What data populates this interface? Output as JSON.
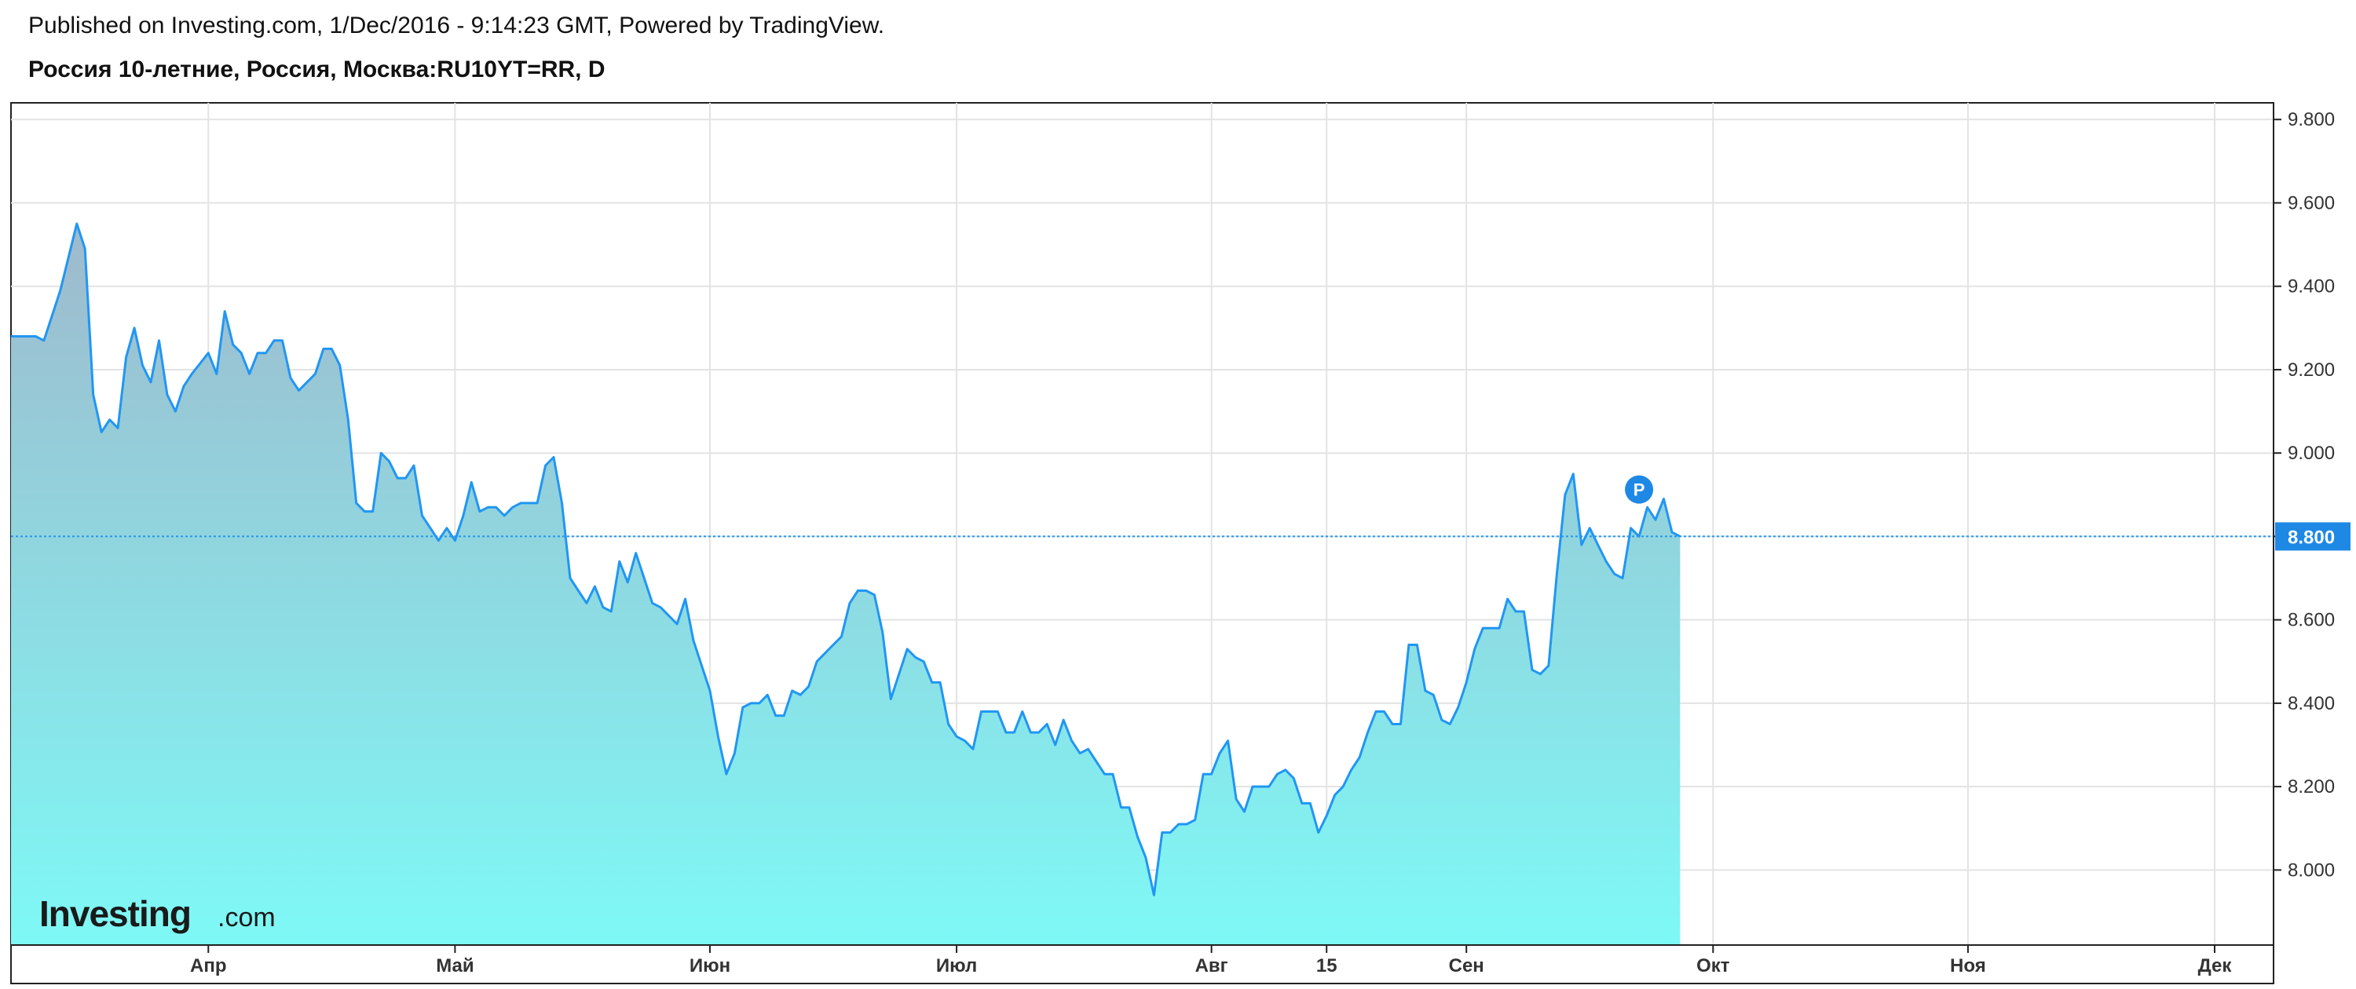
{
  "header": {
    "published": "Published on Investing.com, 1/Dec/2016 - 9:14:23 GMT, Powered by TradingView.",
    "title": "Россия 10-летние, Россия, Москва:RU10YT=RR, D"
  },
  "logo": {
    "main": "Investing",
    "suffix": ".com"
  },
  "marker": {
    "label": "P"
  },
  "colors": {
    "line": "#2196f3",
    "fill_top": "#9fb9cc",
    "fill_bottom": "#7ef9f6",
    "grid": "#e3e3e3",
    "frame": "#222222",
    "last_badge": "#1e88e5"
  },
  "chart_data": {
    "type": "area",
    "title": "Россия 10-летние, Россия, Москва:RU10YT=RR, D",
    "ylim": [
      7.82,
      9.84
    ],
    "y_ticks": [
      "9.800",
      "9.600",
      "9.400",
      "9.200",
      "9.000",
      "8.800",
      "8.600",
      "8.400",
      "8.200",
      "8.000"
    ],
    "x_labels": [
      {
        "label": "Апр",
        "day": 24
      },
      {
        "label": "Май",
        "day": 54
      },
      {
        "label": "Июн",
        "day": 85
      },
      {
        "label": "Июл",
        "day": 115
      },
      {
        "label": "Авг",
        "day": 146
      },
      {
        "label": "15",
        "day": 160
      },
      {
        "label": "Сен",
        "day": 177
      },
      {
        "label": "Окт",
        "day": 207
      },
      {
        "label": "Ноя",
        "day": 238
      },
      {
        "label": "Дек",
        "day": 268
      }
    ],
    "last_value": "8.800",
    "grid": true,
    "series": [
      {
        "points": [
          [
            0,
            9.28
          ],
          [
            3,
            9.28
          ],
          [
            4,
            9.27
          ],
          [
            5,
            9.33
          ],
          [
            6,
            9.39
          ],
          [
            7,
            9.47
          ],
          [
            8,
            9.55
          ],
          [
            9,
            9.49
          ],
          [
            10,
            9.14
          ],
          [
            11,
            9.05
          ],
          [
            12,
            9.08
          ],
          [
            13,
            9.06
          ],
          [
            14,
            9.23
          ],
          [
            15,
            9.3
          ],
          [
            16,
            9.21
          ],
          [
            17,
            9.17
          ],
          [
            18,
            9.27
          ],
          [
            19,
            9.14
          ],
          [
            20,
            9.1
          ],
          [
            21,
            9.16
          ],
          [
            22,
            9.19
          ],
          [
            24,
            9.24
          ],
          [
            25,
            9.19
          ],
          [
            26,
            9.34
          ],
          [
            27,
            9.26
          ],
          [
            28,
            9.24
          ],
          [
            29,
            9.19
          ],
          [
            30,
            9.24
          ],
          [
            31,
            9.24
          ],
          [
            32,
            9.27
          ],
          [
            33,
            9.27
          ],
          [
            34,
            9.18
          ],
          [
            35,
            9.15
          ],
          [
            36,
            9.17
          ],
          [
            37,
            9.19
          ],
          [
            38,
            9.25
          ],
          [
            39,
            9.25
          ],
          [
            40,
            9.21
          ],
          [
            41,
            9.08
          ],
          [
            42,
            8.88
          ],
          [
            43,
            8.86
          ],
          [
            44,
            8.86
          ],
          [
            45,
            9.0
          ],
          [
            46,
            8.98
          ],
          [
            47,
            8.94
          ],
          [
            48,
            8.94
          ],
          [
            49,
            8.97
          ],
          [
            50,
            8.85
          ],
          [
            51,
            8.82
          ],
          [
            52,
            8.79
          ],
          [
            53,
            8.82
          ],
          [
            54,
            8.79
          ],
          [
            55,
            8.85
          ],
          [
            56,
            8.93
          ],
          [
            57,
            8.86
          ],
          [
            58,
            8.87
          ],
          [
            59,
            8.87
          ],
          [
            60,
            8.85
          ],
          [
            61,
            8.87
          ],
          [
            62,
            8.88
          ],
          [
            63,
            8.88
          ],
          [
            64,
            8.88
          ],
          [
            65,
            8.97
          ],
          [
            66,
            8.99
          ],
          [
            67,
            8.88
          ],
          [
            68,
            8.7
          ],
          [
            69,
            8.67
          ],
          [
            70,
            8.64
          ],
          [
            71,
            8.68
          ],
          [
            72,
            8.63
          ],
          [
            73,
            8.62
          ],
          [
            74,
            8.74
          ],
          [
            75,
            8.69
          ],
          [
            76,
            8.76
          ],
          [
            77,
            8.7
          ],
          [
            78,
            8.64
          ],
          [
            79,
            8.63
          ],
          [
            80,
            8.61
          ],
          [
            81,
            8.59
          ],
          [
            82,
            8.65
          ],
          [
            83,
            8.55
          ],
          [
            84,
            8.49
          ],
          [
            85,
            8.43
          ],
          [
            86,
            8.32
          ],
          [
            87,
            8.23
          ],
          [
            88,
            8.28
          ],
          [
            89,
            8.39
          ],
          [
            90,
            8.4
          ],
          [
            91,
            8.4
          ],
          [
            92,
            8.42
          ],
          [
            93,
            8.37
          ],
          [
            94,
            8.37
          ],
          [
            95,
            8.43
          ],
          [
            96,
            8.42
          ],
          [
            97,
            8.44
          ],
          [
            98,
            8.5
          ],
          [
            99,
            8.52
          ],
          [
            100,
            8.54
          ],
          [
            101,
            8.56
          ],
          [
            102,
            8.64
          ],
          [
            103,
            8.67
          ],
          [
            104,
            8.67
          ],
          [
            105,
            8.66
          ],
          [
            106,
            8.57
          ],
          [
            107,
            8.41
          ],
          [
            108,
            8.47
          ],
          [
            109,
            8.53
          ],
          [
            110,
            8.51
          ],
          [
            111,
            8.5
          ],
          [
            112,
            8.45
          ],
          [
            113,
            8.45
          ],
          [
            114,
            8.35
          ],
          [
            115,
            8.32
          ],
          [
            116,
            8.31
          ],
          [
            117,
            8.29
          ],
          [
            118,
            8.38
          ],
          [
            119,
            8.38
          ],
          [
            120,
            8.38
          ],
          [
            121,
            8.33
          ],
          [
            122,
            8.33
          ],
          [
            123,
            8.38
          ],
          [
            124,
            8.33
          ],
          [
            125,
            8.33
          ],
          [
            126,
            8.35
          ],
          [
            127,
            8.3
          ],
          [
            128,
            8.36
          ],
          [
            129,
            8.31
          ],
          [
            130,
            8.28
          ],
          [
            131,
            8.29
          ],
          [
            132,
            8.26
          ],
          [
            133,
            8.23
          ],
          [
            134,
            8.23
          ],
          [
            135,
            8.15
          ],
          [
            136,
            8.15
          ],
          [
            137,
            8.08
          ],
          [
            138,
            8.03
          ],
          [
            139,
            7.94
          ],
          [
            140,
            8.09
          ],
          [
            141,
            8.09
          ],
          [
            142,
            8.11
          ],
          [
            143,
            8.11
          ],
          [
            144,
            8.12
          ],
          [
            145,
            8.23
          ],
          [
            146,
            8.23
          ],
          [
            147,
            8.28
          ],
          [
            148,
            8.31
          ],
          [
            149,
            8.17
          ],
          [
            150,
            8.14
          ],
          [
            151,
            8.2
          ],
          [
            152,
            8.2
          ],
          [
            153,
            8.2
          ],
          [
            154,
            8.23
          ],
          [
            155,
            8.24
          ],
          [
            156,
            8.22
          ],
          [
            157,
            8.16
          ],
          [
            158,
            8.16
          ],
          [
            159,
            8.09
          ],
          [
            160,
            8.13
          ],
          [
            161,
            8.18
          ],
          [
            162,
            8.2
          ],
          [
            163,
            8.24
          ],
          [
            164,
            8.27
          ],
          [
            165,
            8.33
          ],
          [
            166,
            8.38
          ],
          [
            167,
            8.38
          ],
          [
            168,
            8.35
          ],
          [
            169,
            8.35
          ],
          [
            170,
            8.54
          ],
          [
            171,
            8.54
          ],
          [
            172,
            8.43
          ],
          [
            173,
            8.42
          ],
          [
            174,
            8.36
          ],
          [
            175,
            8.35
          ],
          [
            176,
            8.39
          ],
          [
            177,
            8.45
          ],
          [
            178,
            8.53
          ],
          [
            179,
            8.58
          ],
          [
            180,
            8.58
          ],
          [
            181,
            8.58
          ],
          [
            182,
            8.65
          ],
          [
            183,
            8.62
          ],
          [
            184,
            8.62
          ],
          [
            185,
            8.48
          ],
          [
            186,
            8.47
          ],
          [
            187,
            8.49
          ],
          [
            188,
            8.71
          ],
          [
            189,
            8.9
          ],
          [
            190,
            8.95
          ],
          [
            191,
            8.78
          ],
          [
            192,
            8.82
          ],
          [
            193,
            8.78
          ],
          [
            194,
            8.74
          ],
          [
            195,
            8.71
          ],
          [
            196,
            8.7
          ],
          [
            197,
            8.82
          ],
          [
            198,
            8.8
          ],
          [
            199,
            8.87
          ],
          [
            200,
            8.84
          ],
          [
            201,
            8.89
          ],
          [
            202,
            8.81
          ],
          [
            203,
            8.8
          ]
        ]
      }
    ]
  }
}
